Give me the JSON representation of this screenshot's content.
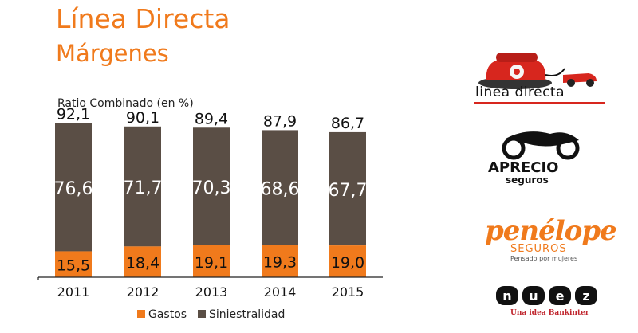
{
  "header": {
    "title": "Línea Directa",
    "subtitle": "Márgenes"
  },
  "chart_data": {
    "type": "bar",
    "stacked": true,
    "title": "Ratio Combinado (en %)",
    "categories": [
      "2011",
      "2012",
      "2013",
      "2014",
      "2015"
    ],
    "totals": [
      "92,1",
      "90,1",
      "89,4",
      "87,9",
      "86,7"
    ],
    "series": [
      {
        "name": "Gastos",
        "color": "#F07A1C",
        "values": [
          15.5,
          18.4,
          19.1,
          19.3,
          19.0
        ],
        "labels": [
          "15,5",
          "18,4",
          "19,1",
          "19,3",
          "19,0"
        ]
      },
      {
        "name": "Siniestralidad",
        "color": "#5A4E45",
        "values": [
          76.6,
          71.7,
          70.3,
          68.6,
          67.7
        ],
        "labels": [
          "76,6",
          "71,7",
          "70,3",
          "68,6",
          "67,7"
        ]
      }
    ],
    "ylim": [
      0,
      100
    ],
    "grid": false,
    "legend": "bottom"
  },
  "logos": {
    "linea_directa": {
      "text": "linea directa",
      "icon": "red-telephone-car-icon"
    },
    "aprecio": {
      "text": "APRECIO",
      "sub": "seguros",
      "icon": "motorcycle-icon"
    },
    "penelope": {
      "text": "penélope",
      "sub": "SEGUROS",
      "sub2": "Pensado por mujeres"
    },
    "nuez": {
      "text": "nuez",
      "sub": "Una idea Bankinter"
    }
  }
}
